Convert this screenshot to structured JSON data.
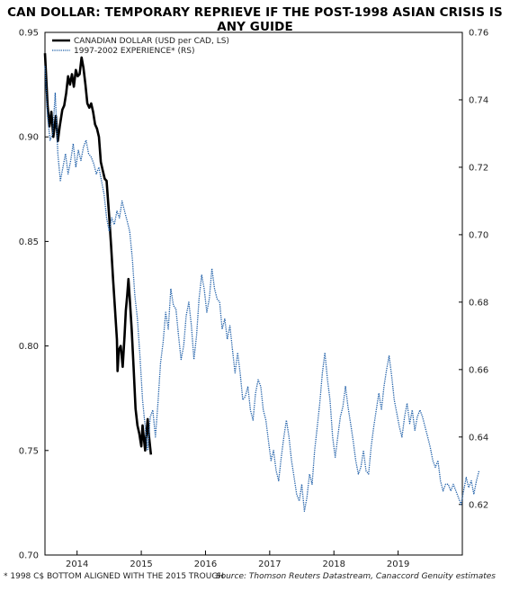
{
  "title": "CAN DOLLAR: TEMPORARY REPRIEVE IF THE POST-1998 ASIAN CRISIS IS ANY GUIDE",
  "footnote_left": "* 1998 C$ BOTTOM ALIGNED WITH THE 2015 TROUGH",
  "footnote_right": "Source: Thomson Reuters Datastream, Canaccord Genuity estimates",
  "colors": {
    "cad": "#000000",
    "experience": "#1f5fa8"
  },
  "chart_data": {
    "type": "line",
    "x_ticks": [
      "2014",
      "2015",
      "2016",
      "2017",
      "2018",
      "2019"
    ],
    "x_range": [
      2013.5,
      2020.0
    ],
    "y_left": {
      "ticks": [
        "0.95",
        "0.90",
        "0.85",
        "0.80",
        "0.75",
        "0.70"
      ],
      "range": [
        0.7,
        0.95
      ]
    },
    "y_right": {
      "ticks": [
        "0.76",
        "0.74",
        "0.72",
        "0.70",
        "0.68",
        "0.66",
        "0.64",
        "0.62"
      ],
      "range": [
        0.605,
        0.76
      ]
    },
    "grid": false,
    "legend_position": "top-left",
    "series": [
      {
        "name": "CANADIAN DOLLAR (USD per CAD, LS)",
        "axis": "left",
        "style": "solid",
        "points": [
          [
            2013.5,
            0.94
          ],
          [
            2013.52,
            0.928
          ],
          [
            2013.54,
            0.915
          ],
          [
            2013.57,
            0.905
          ],
          [
            2013.6,
            0.912
          ],
          [
            2013.63,
            0.9
          ],
          [
            2013.67,
            0.91
          ],
          [
            2013.7,
            0.898
          ],
          [
            2013.73,
            0.905
          ],
          [
            2013.77,
            0.913
          ],
          [
            2013.8,
            0.915
          ],
          [
            2013.83,
            0.921
          ],
          [
            2013.86,
            0.929
          ],
          [
            2013.89,
            0.925
          ],
          [
            2013.92,
            0.93
          ],
          [
            2013.95,
            0.924
          ],
          [
            2013.98,
            0.932
          ],
          [
            2014.01,
            0.929
          ],
          [
            2014.04,
            0.93
          ],
          [
            2014.07,
            0.938
          ],
          [
            2014.1,
            0.933
          ],
          [
            2014.13,
            0.925
          ],
          [
            2014.16,
            0.916
          ],
          [
            2014.19,
            0.914
          ],
          [
            2014.22,
            0.916
          ],
          [
            2014.25,
            0.912
          ],
          [
            2014.28,
            0.906
          ],
          [
            2014.31,
            0.904
          ],
          [
            2014.34,
            0.9
          ],
          [
            2014.37,
            0.888
          ],
          [
            2014.4,
            0.884
          ],
          [
            2014.43,
            0.88
          ],
          [
            2014.46,
            0.879
          ],
          [
            2014.5,
            0.862
          ],
          [
            2014.53,
            0.848
          ],
          [
            2014.56,
            0.832
          ],
          [
            2014.59,
            0.818
          ],
          [
            2014.62,
            0.803
          ],
          [
            2014.63,
            0.788
          ],
          [
            2014.65,
            0.798
          ],
          [
            2014.68,
            0.8
          ],
          [
            2014.71,
            0.79
          ],
          [
            2014.74,
            0.805
          ],
          [
            2014.76,
            0.817
          ],
          [
            2014.78,
            0.824
          ],
          [
            2014.8,
            0.832
          ],
          [
            2014.82,
            0.823
          ],
          [
            2014.85,
            0.808
          ],
          [
            2014.88,
            0.79
          ],
          [
            2014.91,
            0.77
          ],
          [
            2014.94,
            0.762
          ],
          [
            2014.97,
            0.758
          ],
          [
            2015.0,
            0.752
          ],
          [
            2015.02,
            0.762
          ],
          [
            2015.04,
            0.756
          ],
          [
            2015.06,
            0.75
          ],
          [
            2015.08,
            0.758
          ],
          [
            2015.1,
            0.765
          ],
          [
            2015.12,
            0.757
          ],
          [
            2015.15,
            0.748
          ]
        ]
      },
      {
        "name": "1997-2002 EXPERIENCE* (RS)",
        "axis": "right",
        "style": "dotted",
        "points": [
          [
            2013.5,
            0.75
          ],
          [
            2013.54,
            0.735
          ],
          [
            2013.58,
            0.728
          ],
          [
            2013.62,
            0.73
          ],
          [
            2013.66,
            0.742
          ],
          [
            2013.7,
            0.724
          ],
          [
            2013.74,
            0.716
          ],
          [
            2013.78,
            0.72
          ],
          [
            2013.82,
            0.724
          ],
          [
            2013.86,
            0.718
          ],
          [
            2013.9,
            0.722
          ],
          [
            2013.94,
            0.727
          ],
          [
            2013.98,
            0.72
          ],
          [
            2014.02,
            0.725
          ],
          [
            2014.06,
            0.722
          ],
          [
            2014.1,
            0.726
          ],
          [
            2014.14,
            0.728
          ],
          [
            2014.18,
            0.724
          ],
          [
            2014.22,
            0.723
          ],
          [
            2014.26,
            0.721
          ],
          [
            2014.3,
            0.718
          ],
          [
            2014.34,
            0.72
          ],
          [
            2014.38,
            0.716
          ],
          [
            2014.42,
            0.712
          ],
          [
            2014.46,
            0.705
          ],
          [
            2014.5,
            0.701
          ],
          [
            2014.54,
            0.705
          ],
          [
            2014.58,
            0.703
          ],
          [
            2014.62,
            0.707
          ],
          [
            2014.66,
            0.705
          ],
          [
            2014.7,
            0.71
          ],
          [
            2014.74,
            0.707
          ],
          [
            2014.78,
            0.704
          ],
          [
            2014.82,
            0.701
          ],
          [
            2014.86,
            0.693
          ],
          [
            2014.9,
            0.682
          ],
          [
            2014.94,
            0.675
          ],
          [
            2014.98,
            0.664
          ],
          [
            2015.02,
            0.651
          ],
          [
            2015.06,
            0.643
          ],
          [
            2015.1,
            0.636
          ],
          [
            2015.14,
            0.646
          ],
          [
            2015.18,
            0.648
          ],
          [
            2015.22,
            0.64
          ],
          [
            2015.26,
            0.65
          ],
          [
            2015.3,
            0.662
          ],
          [
            2015.34,
            0.668
          ],
          [
            2015.38,
            0.677
          ],
          [
            2015.42,
            0.672
          ],
          [
            2015.46,
            0.684
          ],
          [
            2015.5,
            0.679
          ],
          [
            2015.54,
            0.678
          ],
          [
            2015.58,
            0.67
          ],
          [
            2015.62,
            0.663
          ],
          [
            2015.66,
            0.667
          ],
          [
            2015.7,
            0.676
          ],
          [
            2015.74,
            0.68
          ],
          [
            2015.78,
            0.673
          ],
          [
            2015.82,
            0.663
          ],
          [
            2015.86,
            0.67
          ],
          [
            2015.9,
            0.681
          ],
          [
            2015.94,
            0.688
          ],
          [
            2015.98,
            0.684
          ],
          [
            2016.02,
            0.677
          ],
          [
            2016.06,
            0.681
          ],
          [
            2016.1,
            0.69
          ],
          [
            2016.14,
            0.684
          ],
          [
            2016.18,
            0.681
          ],
          [
            2016.22,
            0.68
          ],
          [
            2016.26,
            0.672
          ],
          [
            2016.3,
            0.675
          ],
          [
            2016.34,
            0.669
          ],
          [
            2016.38,
            0.673
          ],
          [
            2016.42,
            0.666
          ],
          [
            2016.46,
            0.659
          ],
          [
            2016.5,
            0.665
          ],
          [
            2016.54,
            0.659
          ],
          [
            2016.58,
            0.651
          ],
          [
            2016.62,
            0.652
          ],
          [
            2016.66,
            0.655
          ],
          [
            2016.7,
            0.648
          ],
          [
            2016.74,
            0.645
          ],
          [
            2016.78,
            0.653
          ],
          [
            2016.82,
            0.657
          ],
          [
            2016.86,
            0.655
          ],
          [
            2016.9,
            0.648
          ],
          [
            2016.94,
            0.645
          ],
          [
            2016.98,
            0.639
          ],
          [
            2017.02,
            0.633
          ],
          [
            2017.06,
            0.636
          ],
          [
            2017.1,
            0.63
          ],
          [
            2017.14,
            0.627
          ],
          [
            2017.18,
            0.634
          ],
          [
            2017.22,
            0.64
          ],
          [
            2017.26,
            0.645
          ],
          [
            2017.3,
            0.64
          ],
          [
            2017.34,
            0.633
          ],
          [
            2017.38,
            0.628
          ],
          [
            2017.42,
            0.623
          ],
          [
            2017.46,
            0.621
          ],
          [
            2017.5,
            0.626
          ],
          [
            2017.54,
            0.618
          ],
          [
            2017.58,
            0.622
          ],
          [
            2017.62,
            0.629
          ],
          [
            2017.66,
            0.626
          ],
          [
            2017.7,
            0.636
          ],
          [
            2017.74,
            0.643
          ],
          [
            2017.78,
            0.65
          ],
          [
            2017.82,
            0.659
          ],
          [
            2017.86,
            0.665
          ],
          [
            2017.9,
            0.657
          ],
          [
            2017.94,
            0.651
          ],
          [
            2017.98,
            0.64
          ],
          [
            2018.02,
            0.634
          ],
          [
            2018.06,
            0.64
          ],
          [
            2018.1,
            0.646
          ],
          [
            2018.14,
            0.649
          ],
          [
            2018.18,
            0.655
          ],
          [
            2018.22,
            0.649
          ],
          [
            2018.26,
            0.644
          ],
          [
            2018.3,
            0.639
          ],
          [
            2018.34,
            0.633
          ],
          [
            2018.38,
            0.629
          ],
          [
            2018.42,
            0.631
          ],
          [
            2018.46,
            0.636
          ],
          [
            2018.5,
            0.63
          ],
          [
            2018.54,
            0.629
          ],
          [
            2018.58,
            0.637
          ],
          [
            2018.62,
            0.643
          ],
          [
            2018.66,
            0.648
          ],
          [
            2018.7,
            0.653
          ],
          [
            2018.74,
            0.648
          ],
          [
            2018.78,
            0.655
          ],
          [
            2018.82,
            0.66
          ],
          [
            2018.86,
            0.664
          ],
          [
            2018.9,
            0.658
          ],
          [
            2018.94,
            0.651
          ],
          [
            2018.98,
            0.647
          ],
          [
            2019.02,
            0.643
          ],
          [
            2019.06,
            0.64
          ],
          [
            2019.1,
            0.646
          ],
          [
            2019.14,
            0.65
          ],
          [
            2019.18,
            0.644
          ],
          [
            2019.22,
            0.648
          ],
          [
            2019.26,
            0.642
          ],
          [
            2019.3,
            0.646
          ],
          [
            2019.34,
            0.648
          ],
          [
            2019.38,
            0.646
          ],
          [
            2019.42,
            0.643
          ],
          [
            2019.46,
            0.64
          ],
          [
            2019.5,
            0.637
          ],
          [
            2019.54,
            0.633
          ],
          [
            2019.58,
            0.631
          ],
          [
            2019.62,
            0.633
          ],
          [
            2019.66,
            0.627
          ],
          [
            2019.7,
            0.624
          ],
          [
            2019.74,
            0.626
          ],
          [
            2019.78,
            0.626
          ],
          [
            2019.82,
            0.624
          ],
          [
            2019.86,
            0.626
          ],
          [
            2019.9,
            0.624
          ],
          [
            2019.94,
            0.622
          ],
          [
            2019.98,
            0.62
          ],
          [
            2020.02,
            0.624
          ],
          [
            2020.06,
            0.628
          ],
          [
            2020.1,
            0.625
          ],
          [
            2020.14,
            0.627
          ],
          [
            2020.18,
            0.623
          ],
          [
            2020.22,
            0.627
          ],
          [
            2020.26,
            0.63
          ]
        ]
      }
    ]
  }
}
